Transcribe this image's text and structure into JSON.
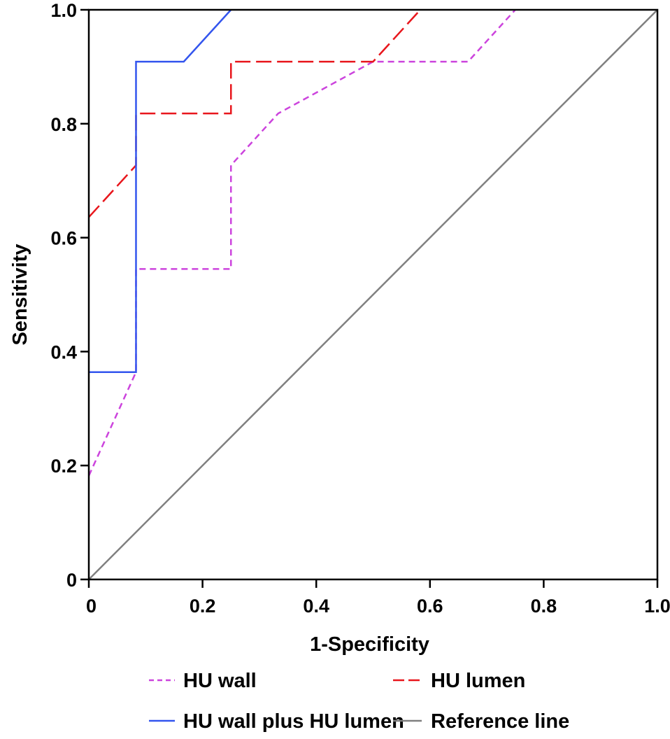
{
  "chart_data": {
    "type": "line",
    "title": "",
    "xlabel": "1-Specificity",
    "ylabel": "Sensitivity",
    "xlim": [
      0,
      1
    ],
    "ylim": [
      0,
      1
    ],
    "grid": false,
    "legend_position": "bottom",
    "x_ticks": [
      {
        "value": 0,
        "label": "0"
      },
      {
        "value": 0.2,
        "label": "0.2"
      },
      {
        "value": 0.4,
        "label": "0.4"
      },
      {
        "value": 0.6,
        "label": "0.6"
      },
      {
        "value": 0.8,
        "label": "0.8"
      },
      {
        "value": 1.0,
        "label": "1.0"
      }
    ],
    "y_ticks": [
      {
        "value": 0,
        "label": "0"
      },
      {
        "value": 0.2,
        "label": "0.2"
      },
      {
        "value": 0.4,
        "label": "0.4"
      },
      {
        "value": 0.6,
        "label": "0.6"
      },
      {
        "value": 0.8,
        "label": "0.8"
      },
      {
        "value": 1.0,
        "label": "1.0"
      }
    ],
    "series": [
      {
        "name": "HU wall",
        "color": "#cc44dd",
        "dash": "short",
        "points": [
          [
            0,
            0.182
          ],
          [
            0.083,
            0.364
          ],
          [
            0.083,
            0.545
          ],
          [
            0.25,
            0.545
          ],
          [
            0.25,
            0.727
          ],
          [
            0.333,
            0.818
          ],
          [
            0.5,
            0.909
          ],
          [
            0.667,
            0.909
          ],
          [
            0.75,
            1.0
          ]
        ]
      },
      {
        "name": "HU lumen",
        "color": "#e8161c",
        "dash": "long",
        "points": [
          [
            0,
            0.636
          ],
          [
            0.083,
            0.727
          ],
          [
            0.083,
            0.818
          ],
          [
            0.25,
            0.818
          ],
          [
            0.25,
            0.909
          ],
          [
            0.5,
            0.909
          ],
          [
            0.583,
            1.0
          ]
        ]
      },
      {
        "name": "HU wall plus HU lumen",
        "color": "#3355ee",
        "dash": "solid",
        "points": [
          [
            0,
            0.364
          ],
          [
            0.083,
            0.364
          ],
          [
            0.083,
            0.909
          ],
          [
            0.167,
            0.909
          ],
          [
            0.25,
            1.0
          ]
        ]
      },
      {
        "name": "Reference line",
        "color": "#808080",
        "dash": "solid",
        "points": [
          [
            0,
            0
          ],
          [
            1,
            1
          ]
        ]
      }
    ]
  }
}
